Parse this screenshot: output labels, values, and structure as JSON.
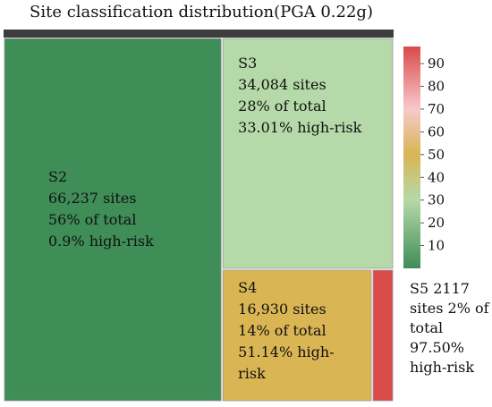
{
  "chart_data": {
    "type": "treemap",
    "title": "Site classification distribution(PGA 0.22g)",
    "header_color": "#3d3d3d",
    "cells": [
      {
        "name": "S2",
        "sites": 66237,
        "share": 56,
        "high_risk": 0.9,
        "lines": [
          "S2",
          "66,237 sites",
          "56% of total",
          "0.9% high-risk"
        ],
        "color": "#3f8d57"
      },
      {
        "name": "S3",
        "sites": 34084,
        "share": 28,
        "high_risk": 33.01,
        "lines": [
          "S3",
          "34,084 sites",
          "28% of total",
          "33.01% high-risk"
        ],
        "color": "#b5d9a8"
      },
      {
        "name": "S4",
        "sites": 16930,
        "share": 14,
        "high_risk": 51.14,
        "lines": [
          "S4",
          "16,930 sites",
          "14% of total",
          "51.14% high-",
          "risk"
        ],
        "color": "#d9b553"
      },
      {
        "name": "S5",
        "sites": 2117,
        "share": 2,
        "high_risk": 97.5,
        "lines": [
          "S5 2117",
          "sites 2% of",
          "total",
          "97.50%",
          "high-risk"
        ],
        "color": "#d94a4a"
      }
    ],
    "colorbar": {
      "min": 0,
      "max": 97.5,
      "ticks": [
        10,
        20,
        30,
        40,
        50,
        60,
        70,
        80,
        90
      ],
      "stops": [
        {
          "value": 0,
          "color": "#3f8d57"
        },
        {
          "value": 30,
          "color": "#b5d9a8"
        },
        {
          "value": 50,
          "color": "#d9b553"
        },
        {
          "value": 70,
          "color": "#f7c9cc"
        },
        {
          "value": 97.5,
          "color": "#d94a4a"
        }
      ]
    }
  }
}
